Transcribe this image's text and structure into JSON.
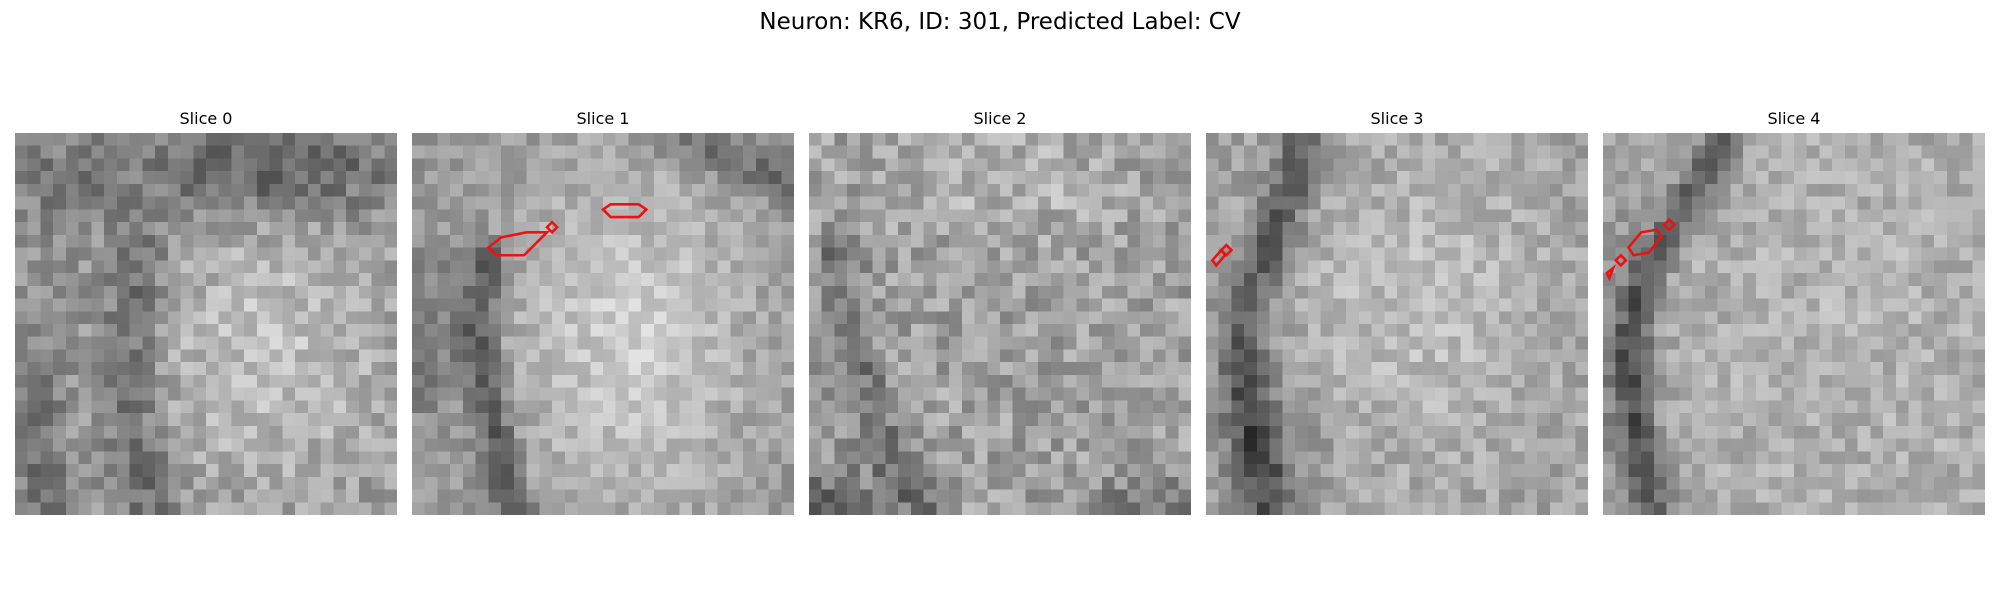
{
  "figure": {
    "title": "Neuron: KR6, ID: 301, Predicted Label: CV"
  },
  "colors": {
    "contour": "#ee1111",
    "background": "#ffffff"
  },
  "panels": [
    {
      "title": "Slice 0"
    },
    {
      "title": "Slice 1"
    },
    {
      "title": "Slice 2"
    },
    {
      "title": "Slice 3"
    },
    {
      "title": "Slice 4"
    }
  ]
}
